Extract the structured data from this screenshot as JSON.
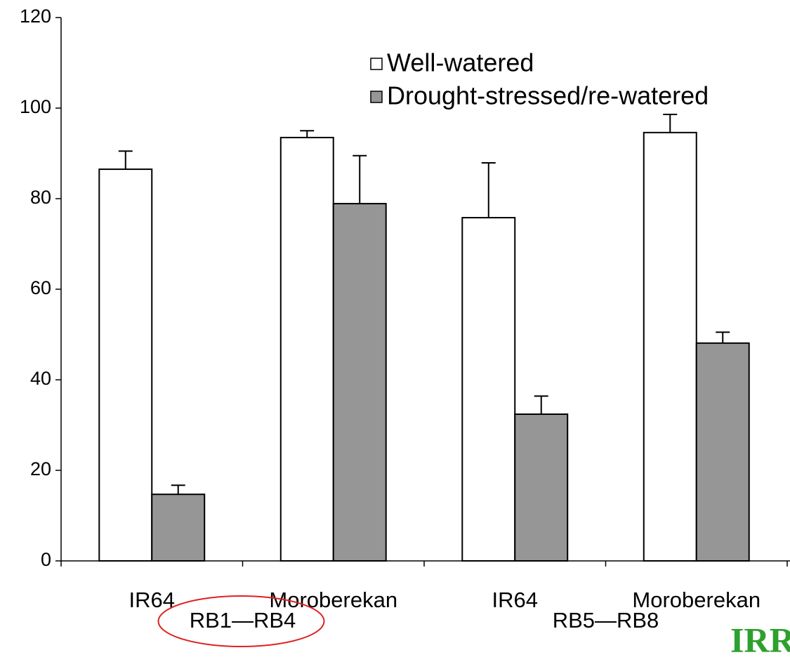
{
  "chart_data": {
    "type": "bar",
    "categories": [
      "IR64",
      "Moroberekan",
      "IR64",
      "Moroberekan"
    ],
    "groups": [
      {
        "label": "RB1—RB4",
        "span": [
          0,
          1
        ]
      },
      {
        "label": "RB5—RB8",
        "span": [
          2,
          3
        ]
      }
    ],
    "series": [
      {
        "name": "Well-watered",
        "color": "#ffffff",
        "values": [
          86.5,
          93.5,
          75.8,
          94.6
        ],
        "errors": [
          4,
          1.5,
          12.1,
          4
        ]
      },
      {
        "name": "Drought-stressed/re-watered",
        "color": "#969696",
        "values": [
          14.7,
          78.9,
          32.4,
          48.1
        ],
        "errors": [
          2,
          10.6,
          4,
          2.4
        ]
      }
    ],
    "ylim": [
      0,
      120
    ],
    "yticks": [
      0,
      20,
      40,
      60,
      80,
      100,
      120
    ],
    "grid": false,
    "legend": "top-right",
    "annotation": "IRRI",
    "highlight_group": 0
  }
}
